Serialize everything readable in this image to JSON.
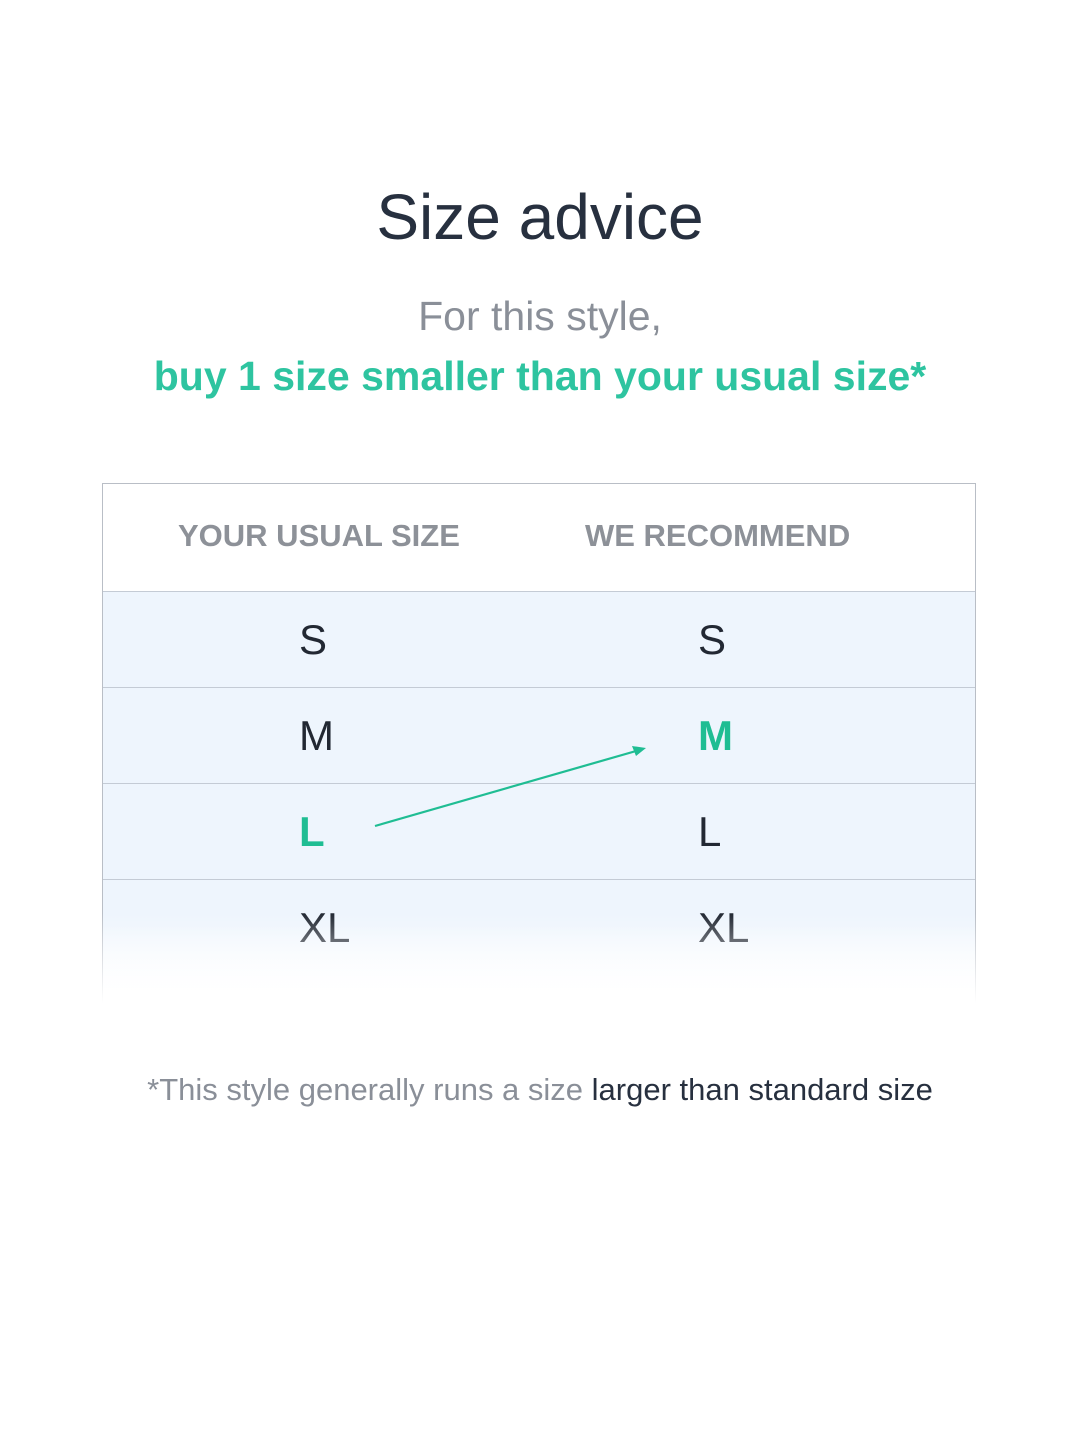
{
  "title": "Size advice",
  "subtitle": "For this style,",
  "recommendation": "buy 1 size smaller than your usual size*",
  "table": {
    "headers": [
      "YOUR USUAL SIZE",
      "WE RECOMMEND"
    ],
    "rows": [
      {
        "usual": "S",
        "recommend": "S",
        "usual_highlight": false,
        "recommend_highlight": false
      },
      {
        "usual": "M",
        "recommend": "M",
        "usual_highlight": false,
        "recommend_highlight": true
      },
      {
        "usual": "L",
        "recommend": "L",
        "usual_highlight": true,
        "recommend_highlight": false
      },
      {
        "usual": "XL",
        "recommend": "XL",
        "usual_highlight": false,
        "recommend_highlight": false
      }
    ]
  },
  "footnote": {
    "muted": "*This style generally runs a size ",
    "emphasis": "larger than standard size"
  },
  "colors": {
    "accent": "#2ec4a0",
    "text": "#27303f",
    "muted": "#8a8f98",
    "row_bg": "#eef5fd"
  }
}
